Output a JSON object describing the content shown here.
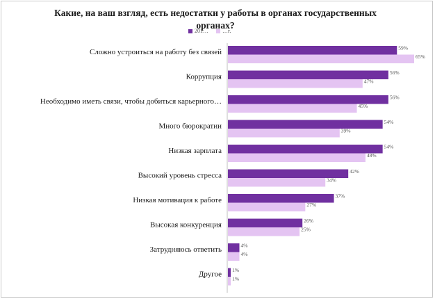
{
  "chart_data": {
    "type": "bar",
    "orientation": "horizontal",
    "title": "Какие, на ваш взгляд, есть недостатки у работы в органах государственных органах?",
    "categories": [
      "Сложно устроиться на работу без связей",
      "Коррупция",
      "Необходимо иметь связи, чтобы добиться карьерного…",
      "Много бюрократии",
      "Низкая зарплата",
      "Высокий уровень стресса",
      "Низкая мотивация к работе",
      "Высокая конкуренция",
      "Затрудняюсь ответить",
      "Другое"
    ],
    "series": [
      {
        "name": "201…",
        "color": "#7030a0",
        "values": [
          59,
          56,
          56,
          54,
          54,
          42,
          37,
          26,
          4,
          1
        ]
      },
      {
        "name": "…г.",
        "color": "#e4c4f2",
        "values": [
          65,
          47,
          45,
          39,
          48,
          34,
          27,
          25,
          4,
          1
        ]
      }
    ],
    "value_suffix": "%",
    "xlim": [
      0,
      65
    ],
    "grid": false,
    "legend_position": "top"
  }
}
